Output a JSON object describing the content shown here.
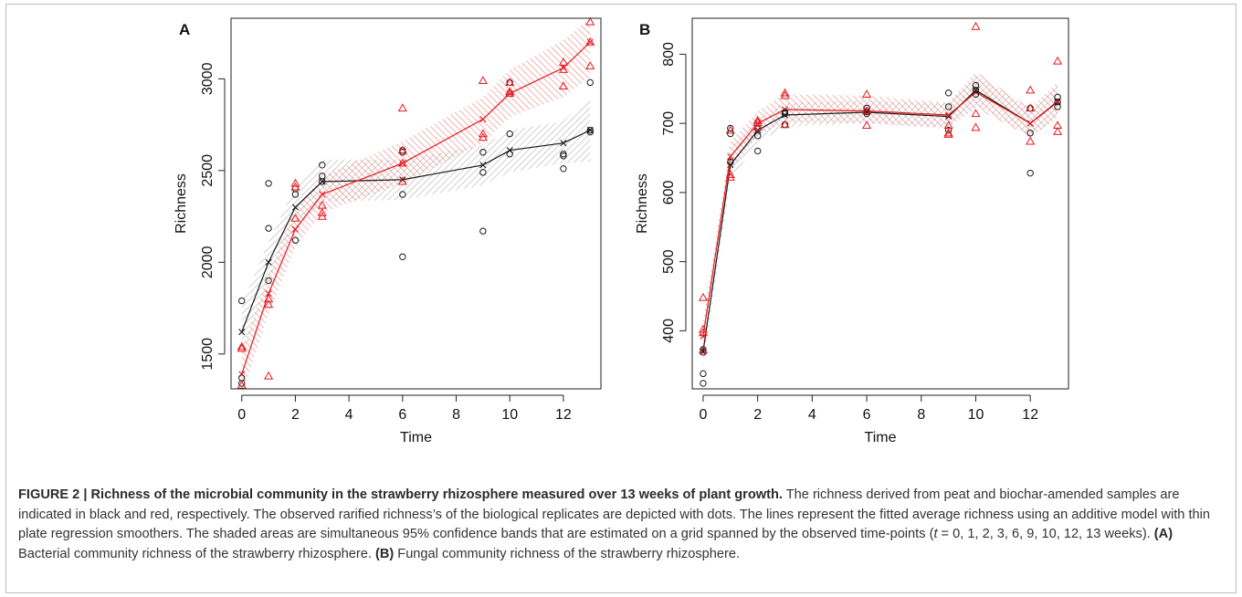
{
  "colors": {
    "peat": "#1a1a1a",
    "biochar": "#e8191f",
    "peat_band": "#bbbbbb",
    "biochar_band": "#f08a8a"
  },
  "chart_data": [
    {
      "panel": "A",
      "type": "line",
      "xlabel": "Time",
      "ylabel": "Richness",
      "xlim": [
        -0.4,
        13.4
      ],
      "ylim": [
        1310,
        3330
      ],
      "xticks": [
        0,
        2,
        4,
        6,
        8,
        10,
        12
      ],
      "yticks": [
        1500,
        2000,
        2500,
        3000
      ],
      "series": [
        {
          "color": "#1a1a1a",
          "fit": {
            "x": [
              0,
              1,
              2,
              3,
              6,
              9,
              10,
              12,
              13
            ],
            "y": [
              1620,
              2000,
              2300,
              2440,
              2450,
              2530,
              2610,
              2650,
              2720
            ]
          },
          "band_lower": [
            1470,
            1890,
            2190,
            2330,
            2340,
            2420,
            2490,
            2540,
            2550
          ],
          "band_upper": [
            1770,
            2110,
            2420,
            2560,
            2560,
            2640,
            2720,
            2770,
            2900
          ],
          "points": {
            "x": [
              0,
              0,
              0,
              1,
              1,
              1,
              2,
              2,
              2,
              3,
              3,
              3,
              6,
              6,
              6,
              6,
              9,
              9,
              9,
              10,
              10,
              10,
              12,
              12,
              12,
              13,
              13,
              13
            ],
            "y": [
              1790,
              1370,
              1340,
              2430,
              2185,
              1900,
              2400,
              2370,
              2120,
              2530,
              2470,
              2440,
              2610,
              2600,
              2370,
              2030,
              2600,
              2490,
              2170,
              2980,
              2700,
              2590,
              2590,
              2580,
              2510,
              2980,
              2720,
              2710
            ]
          }
        },
        {
          "color": "#e8191f",
          "fit": {
            "x": [
              0,
              1,
              2,
              3,
              6,
              9,
              10,
              12,
              13
            ],
            "y": [
              1390,
              1830,
              2180,
              2370,
              2540,
              2780,
              2920,
              3060,
              3200
            ]
          },
          "band_lower": [
            1270,
            1720,
            2080,
            2270,
            2430,
            2650,
            2790,
            2900,
            3010
          ],
          "band_upper": [
            1520,
            1940,
            2290,
            2470,
            2660,
            2900,
            3050,
            3210,
            3330
          ],
          "points": {
            "x": [
              0,
              0,
              0,
              1,
              1,
              1,
              2,
              2,
              2,
              3,
              3,
              3,
              6,
              6,
              6,
              6,
              9,
              9,
              9,
              10,
              10,
              10,
              12,
              12,
              12,
              13,
              13,
              13
            ],
            "y": [
              1540,
              1530,
              1330,
              1800,
              1770,
              1380,
              2430,
              2410,
              2240,
              2310,
              2270,
              2250,
              2840,
              2610,
              2540,
              2440,
              2990,
              2700,
              2680,
              2980,
              2930,
              2920,
              3090,
              3050,
              2960,
              3310,
              3200,
              3070
            ]
          }
        }
      ]
    },
    {
      "panel": "B",
      "type": "line",
      "xlabel": "Time",
      "ylabel": "Richness",
      "xlim": [
        -0.4,
        13.4
      ],
      "ylim": [
        316,
        852
      ],
      "xticks": [
        0,
        2,
        4,
        6,
        8,
        10,
        12
      ],
      "yticks": [
        400,
        500,
        600,
        700,
        800
      ],
      "series": [
        {
          "color": "#1a1a1a",
          "fit": {
            "x": [
              0,
              1,
              2,
              3,
              6,
              9,
              10,
              12,
              13
            ],
            "y": [
              370,
              640,
              690,
              712,
              716,
              710,
              748,
              700,
              731
            ]
          },
          "band_lower": [
            345,
            618,
            672,
            695,
            700,
            692,
            727,
            680,
            708
          ],
          "band_upper": [
            396,
            662,
            708,
            730,
            733,
            728,
            770,
            722,
            755
          ],
          "points": {
            "x": [
              0,
              0,
              0,
              0,
              1,
              1,
              1,
              2,
              2,
              2,
              3,
              3,
              3,
              6,
              6,
              6,
              9,
              9,
              9,
              10,
              10,
              10,
              12,
              12,
              12,
              13,
              13,
              13
            ],
            "y": [
              373,
              369,
              338,
              324,
              693,
              685,
              644,
              692,
              682,
              660,
              716,
              714,
              698,
              722,
              717,
              714,
              744,
              724,
              690,
              755,
              748,
              742,
              722,
              686,
              628,
              738,
              731,
              724
            ]
          }
        },
        {
          "color": "#e8191f",
          "fit": {
            "x": [
              0,
              1,
              2,
              3,
              6,
              9,
              10,
              12,
              13
            ],
            "y": [
              392,
              652,
              700,
              720,
              718,
              712,
              745,
              700,
              732
            ]
          },
          "band_lower": [
            370,
            632,
            682,
            702,
            700,
            694,
            722,
            680,
            708
          ],
          "band_upper": [
            416,
            674,
            718,
            742,
            740,
            730,
            775,
            722,
            760
          ],
          "points": {
            "x": [
              0,
              0,
              0,
              0,
              1,
              1,
              1,
              2,
              2,
              2,
              3,
              3,
              3,
              6,
              6,
              6,
              9,
              9,
              9,
              10,
              10,
              10,
              12,
              12,
              12,
              13,
              13,
              13
            ],
            "y": [
              448,
              402,
              397,
              372,
              690,
              626,
              622,
              704,
              701,
              695,
              744,
              740,
              698,
              742,
              718,
              697,
              697,
              686,
              684,
              840,
              714,
              694,
              748,
              722,
              674,
              790,
              697,
              688
            ]
          }
        }
      ]
    }
  ],
  "caption": {
    "label": "FIGURE 2 | Richness of the microbial community in the strawberry rhizosphere measured over 13 weeks of plant growth.",
    "body": " The richness derived from peat and biochar-amended samples are indicated in black and red, respectively. The observed rarified richness’s of the biological replicates are depicted with dots. The lines represent the fitted average richness using an additive model with thin plate regression smoothers. The shaded areas are simultaneous 95% confidence bands that are estimated on a grid spanned by the observed time-points (",
    "t_symbol": "t",
    "timepoints": " = 0, 1, 2, 3, 6, 9, 10, 12, 13 weeks). ",
    "a_label": "(A)",
    "a_text": " Bacterial community richness of the strawberry rhizosphere. ",
    "b_label": "(B)",
    "b_text": " Fungal community richness of the strawberry rhizosphere."
  }
}
